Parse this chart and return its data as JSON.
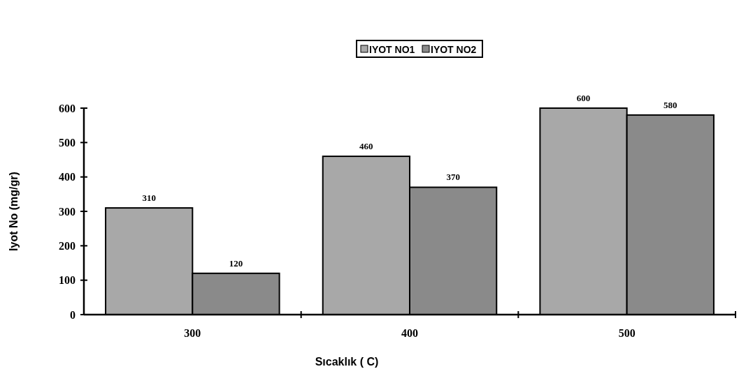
{
  "chart_data": {
    "type": "bar",
    "xlabel": "Sıcaklık  ( C)",
    "ylabel": "Iyot No (mg/gr)",
    "categories": [
      "300",
      "400",
      "500"
    ],
    "series": [
      {
        "name": "IYOT NO1",
        "color": "#a8a8a8",
        "values": [
          310,
          460,
          600
        ]
      },
      {
        "name": "IYOT NO2",
        "color": "#8a8a8a",
        "values": [
          120,
          370,
          580
        ]
      }
    ],
    "ylim": [
      0,
      600
    ],
    "yticks": [
      0,
      100,
      200,
      300,
      400,
      500,
      600
    ],
    "data_labels": true,
    "legend": "top",
    "grid": false
  }
}
